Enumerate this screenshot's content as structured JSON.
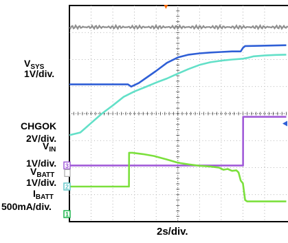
{
  "chart_data": {
    "type": "line",
    "time_scale": "2s/div.",
    "divisions_x": 10,
    "divisions_y": 8,
    "time_axis_s": [
      0,
      20
    ],
    "time_marker_s": 8.9,
    "series": [
      {
        "name": "VSYS",
        "scale": "1V/div.",
        "color": "#2f5fd6",
        "channel_marker": "",
        "offset_div": 5.08,
        "times_s": [
          0,
          5.4,
          5.7,
          6.4,
          7,
          8,
          9,
          10,
          11,
          12,
          13,
          14,
          15,
          15.8,
          16,
          16.2,
          20
        ],
        "values_div": [
          0,
          0,
          -0.08,
          0.05,
          0.22,
          0.5,
          0.8,
          1.0,
          1.1,
          1.15,
          1.18,
          1.2,
          1.22,
          1.22,
          1.35,
          1.42,
          1.45
        ]
      },
      {
        "name": "Trace 2 (cyan)",
        "scale": "",
        "color": "#63e0c8",
        "channel_marker": "",
        "offset_div": 3.2,
        "times_s": [
          0,
          1,
          2,
          3,
          4,
          5,
          6,
          7,
          8,
          9,
          10,
          11,
          12,
          13,
          14,
          15,
          16,
          16.5,
          17,
          18,
          19,
          20
        ],
        "values_div": [
          0,
          0.1,
          0.45,
          0.8,
          1.1,
          1.42,
          1.62,
          1.78,
          1.95,
          2.1,
          2.28,
          2.45,
          2.6,
          2.7,
          2.76,
          2.8,
          2.83,
          2.87,
          2.92,
          2.95,
          2.97,
          2.98
        ]
      },
      {
        "name": "CHGOK",
        "scale": "2V/div.",
        "color": "#a05ad8",
        "channel_marker": "3",
        "offset_div": 2.08,
        "times_s": [
          0,
          16.01,
          16.02,
          20
        ],
        "values_div": [
          0,
          0,
          1.8,
          1.8
        ]
      },
      {
        "name": "VIN",
        "scale": "1V/div.",
        "color": "#aaaaaa",
        "channel_marker": "",
        "offset_div": 1.8,
        "times_s": [],
        "values_div": []
      },
      {
        "name": "VBATT",
        "scale": "1V/div.",
        "color": "#7be03c",
        "channel_marker": "2",
        "offset_div": 1.3,
        "times_s": [
          0,
          5.49,
          5.5,
          5.8,
          6.8,
          7.8,
          9,
          10,
          11,
          12,
          13,
          13.8,
          14.2,
          14.6,
          15,
          15.4,
          15.6,
          15.8,
          16,
          16.2,
          16.4,
          20
        ],
        "values_div": [
          0,
          0,
          1.25,
          1.25,
          1.2,
          1.13,
          1.0,
          0.88,
          0.82,
          0.77,
          0.74,
          0.7,
          0.62,
          0.65,
          0.58,
          0.6,
          0.52,
          0.22,
          0.12,
          -0.5,
          -0.55,
          -0.55
        ]
      },
      {
        "name": "IBATT",
        "scale": "500mA/div.",
        "color": "#19b44a",
        "channel_marker": "1",
        "offset_div": 0.28,
        "times_s": [],
        "values_div": []
      }
    ],
    "top_trace_offset_div": 7.2
  }
}
